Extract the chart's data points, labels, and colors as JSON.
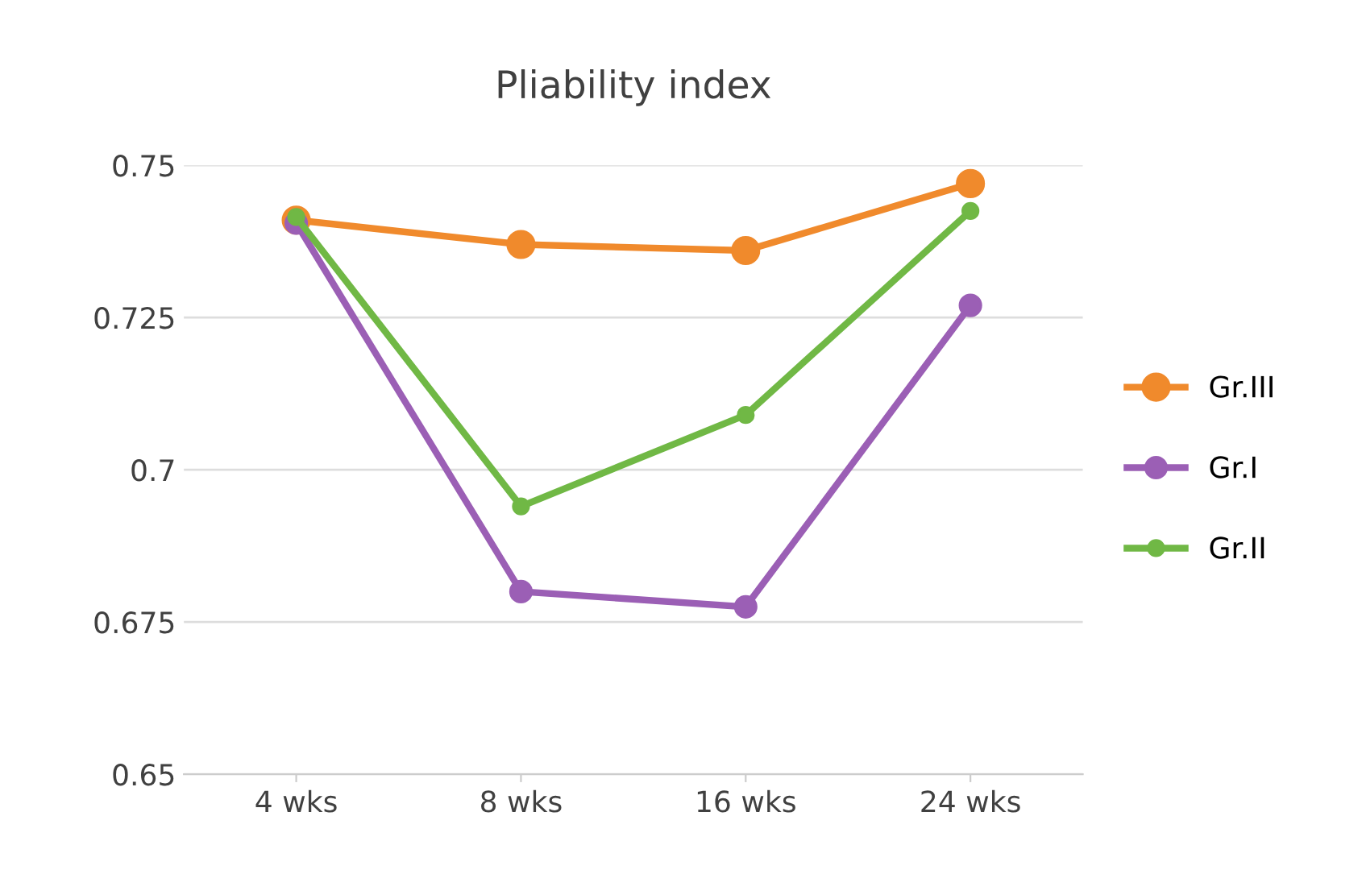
{
  "chart_data": {
    "type": "line",
    "title": "Pliability index",
    "categories": [
      "4 wks",
      "8 wks",
      "16 wks",
      "24 wks"
    ],
    "series": [
      {
        "name": "Gr.III",
        "color": "#f08a2c",
        "values": [
          0.741,
          0.737,
          0.736,
          0.747
        ]
      },
      {
        "name": "Gr.I",
        "color": "#9b5fb5",
        "values": [
          0.7405,
          0.68,
          0.6775,
          0.727
        ]
      },
      {
        "name": "Gr.II",
        "color": "#70b845",
        "values": [
          0.7415,
          0.694,
          0.709,
          0.7425
        ]
      }
    ],
    "ylim": [
      0.65,
      0.75
    ],
    "yticks": [
      {
        "value": 0.65,
        "label": "0.65"
      },
      {
        "value": 0.675,
        "label": "0.675"
      },
      {
        "value": 0.7,
        "label": "0.7"
      },
      {
        "value": 0.725,
        "label": "0.725"
      },
      {
        "value": 0.75,
        "label": "0.75"
      }
    ],
    "grid": "y",
    "legend": "right",
    "marker": "circle"
  }
}
